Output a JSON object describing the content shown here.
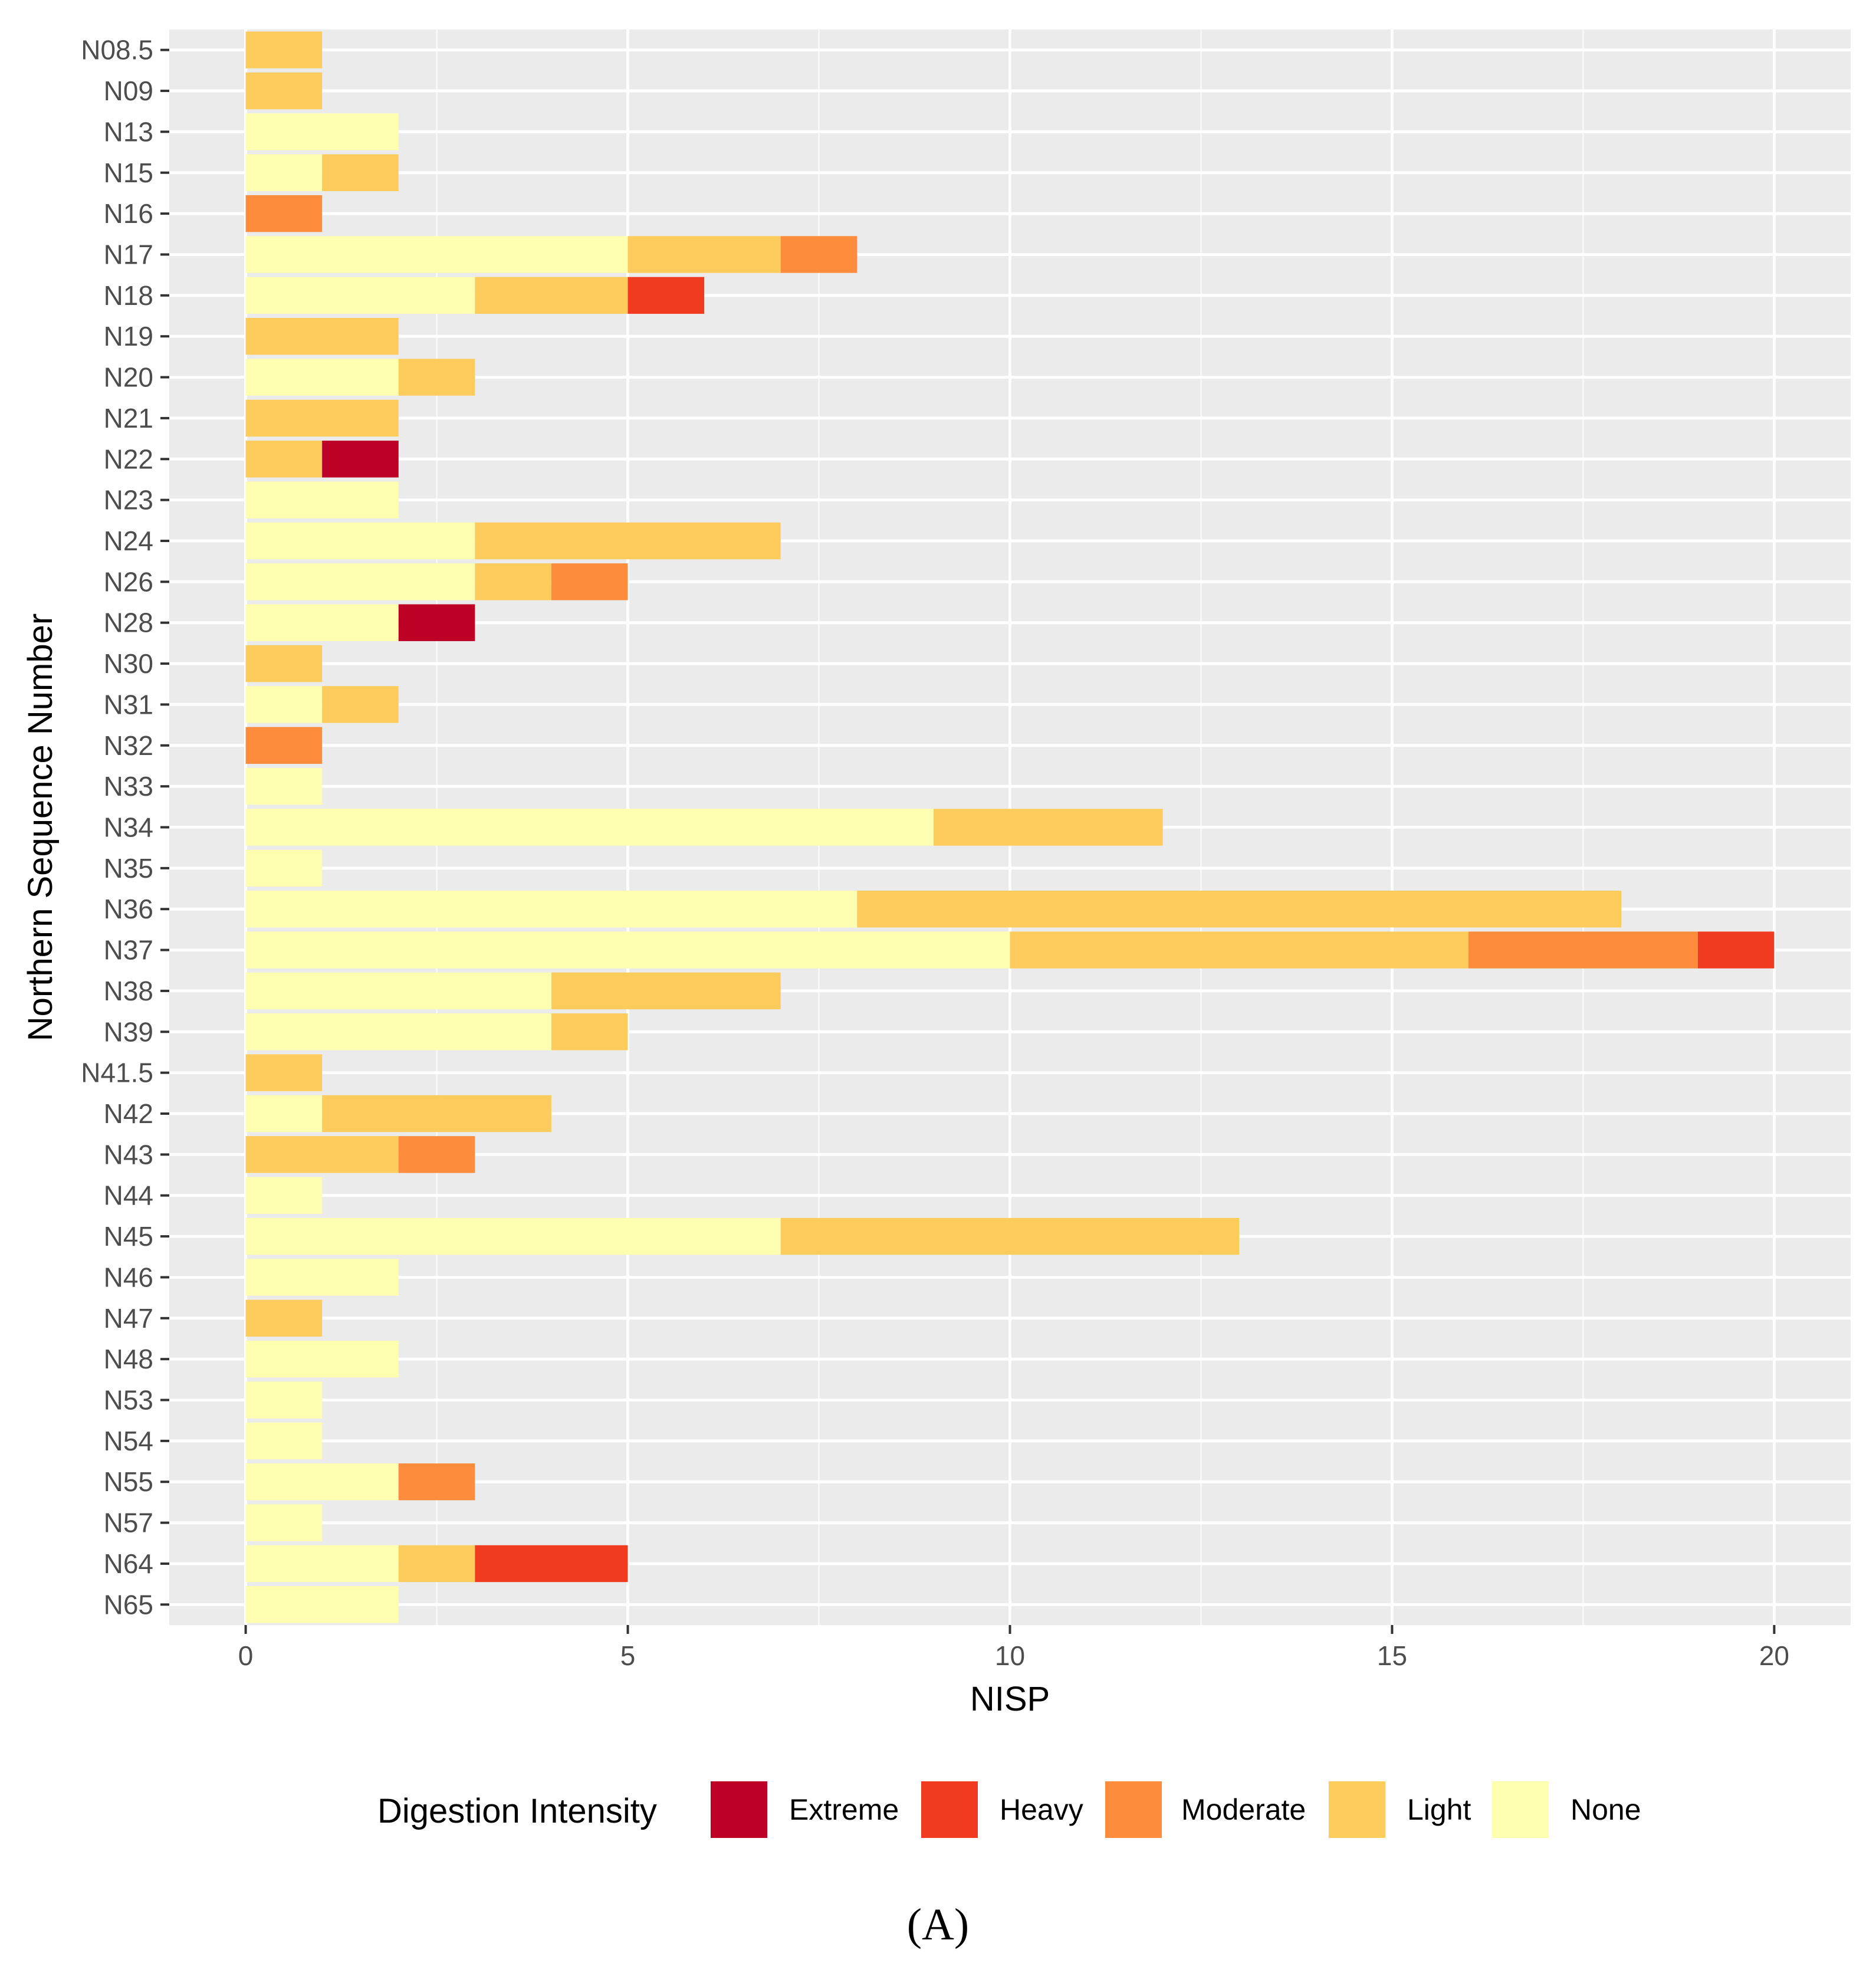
{
  "chart_data": {
    "type": "bar",
    "orientation": "horizontal",
    "stacked": true,
    "xlabel": "NISP",
    "ylabel": "Northern Sequence Number",
    "xlim": [
      -1,
      21
    ],
    "xticks": [
      0,
      5,
      10,
      15,
      20
    ],
    "grid": true,
    "legend_title": "Digestion Intensity",
    "legend_position": "bottom",
    "categories": [
      "N08.5",
      "N09",
      "N13",
      "N15",
      "N16",
      "N17",
      "N18",
      "N19",
      "N20",
      "N21",
      "N22",
      "N23",
      "N24",
      "N26",
      "N28",
      "N30",
      "N31",
      "N32",
      "N33",
      "N34",
      "N35",
      "N36",
      "N37",
      "N38",
      "N39",
      "N41.5",
      "N42",
      "N43",
      "N44",
      "N45",
      "N46",
      "N47",
      "N48",
      "N53",
      "N54",
      "N55",
      "N57",
      "N64",
      "N65"
    ],
    "series": [
      {
        "name": "None",
        "color": "#FFFFB2",
        "values": [
          0,
          0,
          2,
          1,
          0,
          5,
          3,
          0,
          2,
          0,
          0,
          2,
          3,
          3,
          2,
          0,
          1,
          0,
          1,
          9,
          1,
          8,
          10,
          4,
          4,
          0,
          1,
          0,
          1,
          7,
          2,
          0,
          2,
          1,
          1,
          2,
          1,
          2,
          2
        ]
      },
      {
        "name": "Light",
        "color": "#FECC5C",
        "values": [
          1,
          1,
          0,
          1,
          0,
          2,
          2,
          2,
          1,
          2,
          1,
          0,
          4,
          1,
          0,
          1,
          1,
          0,
          0,
          3,
          0,
          10,
          6,
          3,
          1,
          1,
          3,
          2,
          0,
          6,
          0,
          1,
          0,
          0,
          0,
          0,
          0,
          1,
          0
        ]
      },
      {
        "name": "Moderate",
        "color": "#FD8D3C",
        "values": [
          0,
          0,
          0,
          0,
          1,
          1,
          0,
          0,
          0,
          0,
          0,
          0,
          0,
          1,
          0,
          0,
          0,
          1,
          0,
          0,
          0,
          0,
          3,
          0,
          0,
          0,
          0,
          1,
          0,
          0,
          0,
          0,
          0,
          0,
          0,
          1,
          0,
          0,
          0
        ]
      },
      {
        "name": "Heavy",
        "color": "#F03B20",
        "values": [
          0,
          0,
          0,
          0,
          0,
          0,
          1,
          0,
          0,
          0,
          0,
          0,
          0,
          0,
          0,
          0,
          0,
          0,
          0,
          0,
          0,
          0,
          1,
          0,
          0,
          0,
          0,
          0,
          0,
          0,
          0,
          0,
          0,
          0,
          0,
          0,
          0,
          2,
          0
        ]
      },
      {
        "name": "Extreme",
        "color": "#BD0026",
        "values": [
          0,
          0,
          0,
          0,
          0,
          0,
          0,
          0,
          0,
          0,
          1,
          0,
          0,
          0,
          1,
          0,
          0,
          0,
          0,
          0,
          0,
          0,
          0,
          0,
          0,
          0,
          0,
          0,
          0,
          0,
          0,
          0,
          0,
          0,
          0,
          0,
          0,
          0,
          0
        ]
      }
    ],
    "legend_order": [
      "Extreme",
      "Heavy",
      "Moderate",
      "Light",
      "None"
    ]
  },
  "caption": "(A)"
}
